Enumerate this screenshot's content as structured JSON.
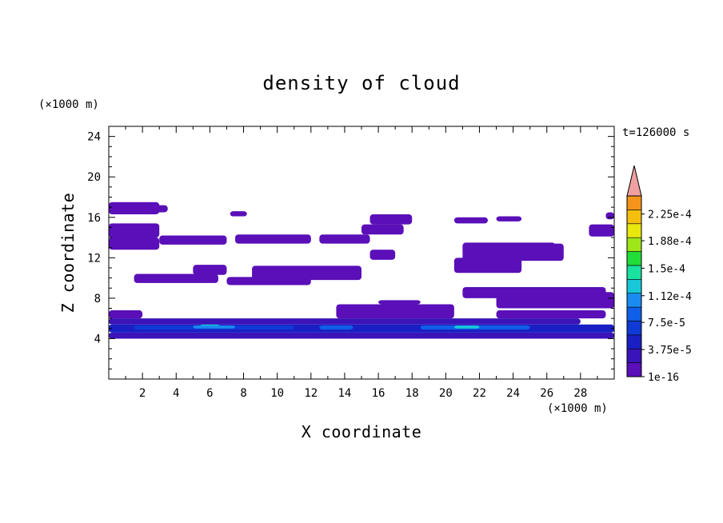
{
  "chart_data": {
    "type": "heatmap",
    "title": "density of cloud",
    "xlabel": "X coordinate",
    "ylabel": "Z coordinate",
    "x_unit": "(×1000 m)",
    "y_unit": "(×1000 m)",
    "time_label": "t=126000 s",
    "xlim": [
      0,
      30
    ],
    "ylim": [
      0,
      25
    ],
    "x_ticks": [
      2,
      4,
      6,
      8,
      10,
      12,
      14,
      16,
      18,
      20,
      22,
      24,
      26,
      28
    ],
    "y_ticks": [
      4,
      8,
      12,
      16,
      20,
      24
    ],
    "colorbar": {
      "min": 1e-16,
      "max": 0.00025,
      "tick_labels": [
        "1e-16",
        "3.75e-5",
        "7.5e-5",
        "1.12e-4",
        "1.5e-4",
        "1.88e-4",
        "2.25e-4"
      ],
      "tick_values": [
        1e-16,
        3.75e-05,
        7.5e-05,
        0.000112,
        0.00015,
        0.000188,
        0.000225
      ],
      "levels": 13,
      "colors": [
        "#5a0fb8",
        "#3a14b8",
        "#1a1fc4",
        "#0f3ad6",
        "#0f5fe8",
        "#1a8cf0",
        "#18c8d8",
        "#1ae0a0",
        "#22dc3a",
        "#9ee61a",
        "#e8e80f",
        "#f5bf0f",
        "#f5941a",
        "#f0601a",
        "#e8301a",
        "#f0a0a0"
      ],
      "extend_color": "#f0a0a0"
    },
    "regions": [
      {
        "z": [
          4.0,
          4.6
        ],
        "x": [
          0.0,
          30.0
        ],
        "level": 1
      },
      {
        "z": [
          4.6,
          5.4
        ],
        "x": [
          0.0,
          30.0
        ],
        "level": 2
      },
      {
        "z": [
          4.9,
          5.3
        ],
        "x": [
          1.5,
          11.0
        ],
        "level": 3
      },
      {
        "z": [
          5.0,
          5.3
        ],
        "x": [
          5.0,
          7.5
        ],
        "level": 5
      },
      {
        "z": [
          5.3,
          5.6
        ],
        "x": [
          5.4,
          6.6
        ],
        "level": 6
      },
      {
        "z": [
          4.9,
          5.3
        ],
        "x": [
          12.5,
          14.5
        ],
        "level": 4
      },
      {
        "z": [
          4.9,
          5.3
        ],
        "x": [
          18.5,
          25.0
        ],
        "level": 4
      },
      {
        "z": [
          5.0,
          5.3
        ],
        "x": [
          20.5,
          22.0
        ],
        "level": 6
      },
      {
        "z": [
          5.4,
          6.0
        ],
        "x": [
          0.0,
          28.0
        ],
        "level": 1
      },
      {
        "z": [
          6.0,
          6.8
        ],
        "x": [
          0.0,
          2.0
        ],
        "level": 0
      },
      {
        "z": [
          6.0,
          7.4
        ],
        "x": [
          13.5,
          20.5
        ],
        "level": 0
      },
      {
        "z": [
          7.4,
          7.8
        ],
        "x": [
          16.0,
          18.5
        ],
        "level": 0
      },
      {
        "z": [
          6.0,
          6.8
        ],
        "x": [
          23.0,
          29.5
        ],
        "level": 0
      },
      {
        "z": [
          7.0,
          8.6
        ],
        "x": [
          23.0,
          30.0
        ],
        "level": 0
      },
      {
        "z": [
          8.0,
          9.1
        ],
        "x": [
          21.0,
          29.5
        ],
        "level": 0
      },
      {
        "z": [
          9.5,
          10.4
        ],
        "x": [
          1.5,
          6.5
        ],
        "level": 0
      },
      {
        "z": [
          9.3,
          10.1
        ],
        "x": [
          7.0,
          12.0
        ],
        "level": 0
      },
      {
        "z": [
          9.8,
          11.2
        ],
        "x": [
          8.5,
          15.0
        ],
        "level": 0
      },
      {
        "z": [
          10.3,
          11.3
        ],
        "x": [
          5.0,
          7.0
        ],
        "level": 0
      },
      {
        "z": [
          10.5,
          12.0
        ],
        "x": [
          20.5,
          24.5
        ],
        "level": 0
      },
      {
        "z": [
          11.8,
          12.8
        ],
        "x": [
          15.5,
          17.0
        ],
        "level": 0
      },
      {
        "z": [
          11.7,
          13.4
        ],
        "x": [
          21.0,
          27.0
        ],
        "level": 0
      },
      {
        "z": [
          12.5,
          13.5
        ],
        "x": [
          21.0,
          26.5
        ],
        "level": 0
      },
      {
        "z": [
          12.8,
          14.0
        ],
        "x": [
          0.0,
          3.0
        ],
        "level": 0
      },
      {
        "z": [
          13.3,
          14.2
        ],
        "x": [
          3.0,
          7.0
        ],
        "level": 0
      },
      {
        "z": [
          13.4,
          14.3
        ],
        "x": [
          7.5,
          12.0
        ],
        "level": 0
      },
      {
        "z": [
          13.4,
          14.3
        ],
        "x": [
          12.5,
          15.5
        ],
        "level": 0
      },
      {
        "z": [
          14.0,
          15.4
        ],
        "x": [
          0.0,
          3.0
        ],
        "level": 0
      },
      {
        "z": [
          14.3,
          15.3
        ],
        "x": [
          15.0,
          17.5
        ],
        "level": 0
      },
      {
        "z": [
          14.1,
          15.3
        ],
        "x": [
          28.5,
          30.0
        ],
        "level": 0
      },
      {
        "z": [
          15.3,
          16.3
        ],
        "x": [
          15.5,
          18.0
        ],
        "level": 0
      },
      {
        "z": [
          15.4,
          16.0
        ],
        "x": [
          20.5,
          22.5
        ],
        "level": 0
      },
      {
        "z": [
          15.6,
          16.1
        ],
        "x": [
          23.0,
          24.5
        ],
        "level": 0
      },
      {
        "z": [
          16.3,
          17.5
        ],
        "x": [
          0.0,
          3.0
        ],
        "level": 0
      },
      {
        "z": [
          16.5,
          17.2
        ],
        "x": [
          2.5,
          3.5
        ],
        "level": 0
      },
      {
        "z": [
          16.1,
          16.6
        ],
        "x": [
          7.2,
          8.2
        ],
        "level": 0
      },
      {
        "z": [
          15.8,
          16.5
        ],
        "x": [
          29.5,
          30.0
        ],
        "level": 0
      }
    ]
  }
}
